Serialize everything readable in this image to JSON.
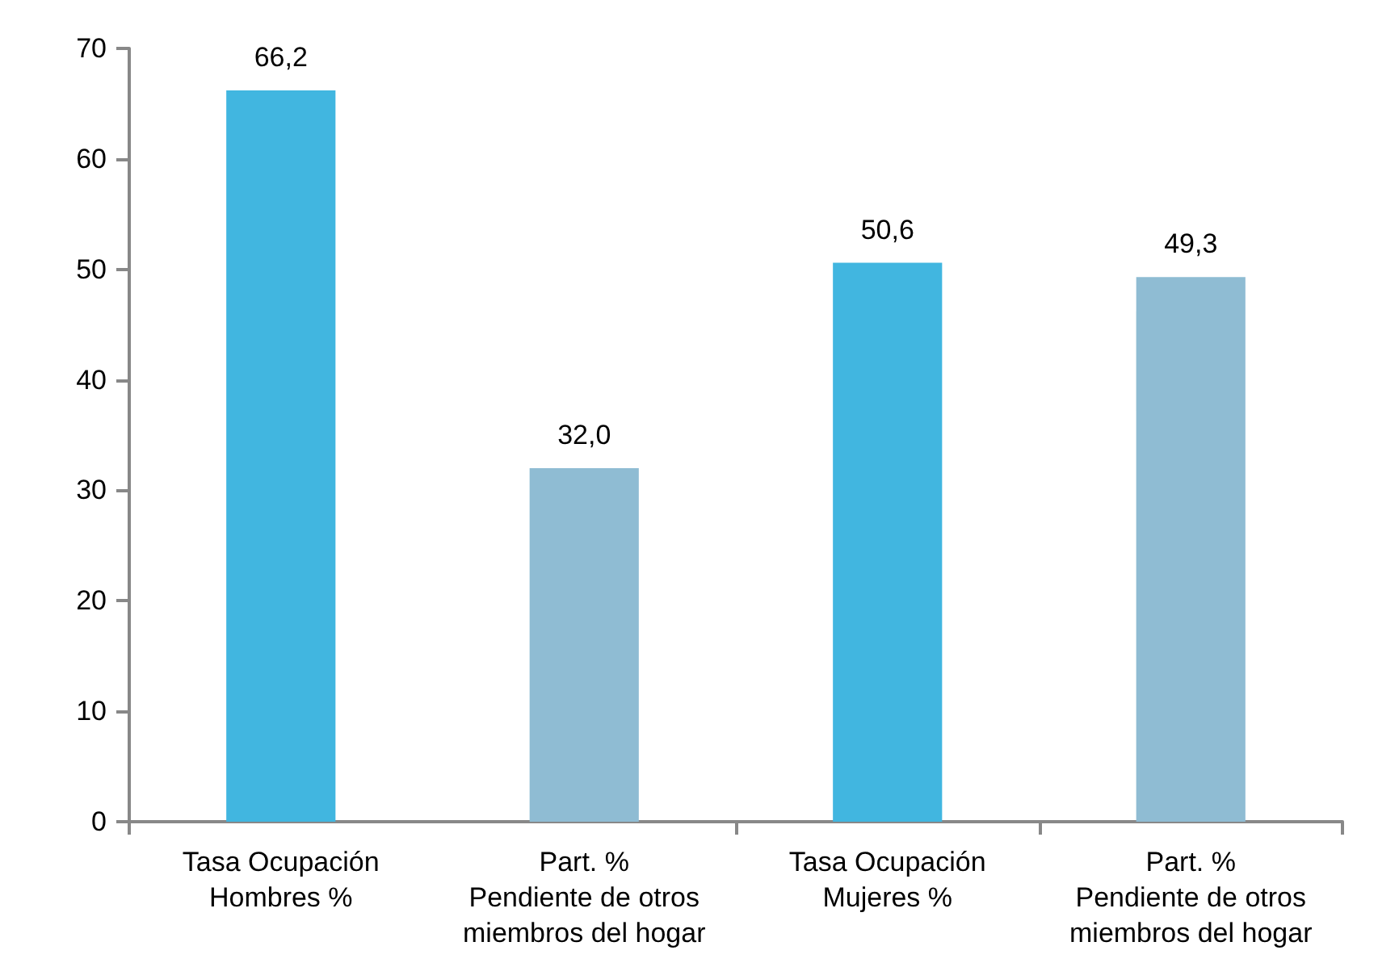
{
  "chart_data": {
    "type": "bar",
    "categories": [
      "Tasa Ocupación\nHombres %",
      "Part. %\nPendiente de otros\nmiembros del hogar",
      "Tasa Ocupación\nMujeres %",
      "Part. %\nPendiente de otros\nmiembros del hogar"
    ],
    "values": [
      66.2,
      32.0,
      50.6,
      49.3
    ],
    "value_labels": [
      "66,2",
      "32,0",
      "50,6",
      "49,3"
    ],
    "colors": [
      "#41b6e0",
      "#8fbcd3",
      "#41b6e0",
      "#8fbcd3"
    ],
    "ylim": [
      0,
      70
    ],
    "yticks": [
      0,
      10,
      20,
      30,
      40,
      50,
      60,
      70
    ],
    "grid": false
  }
}
